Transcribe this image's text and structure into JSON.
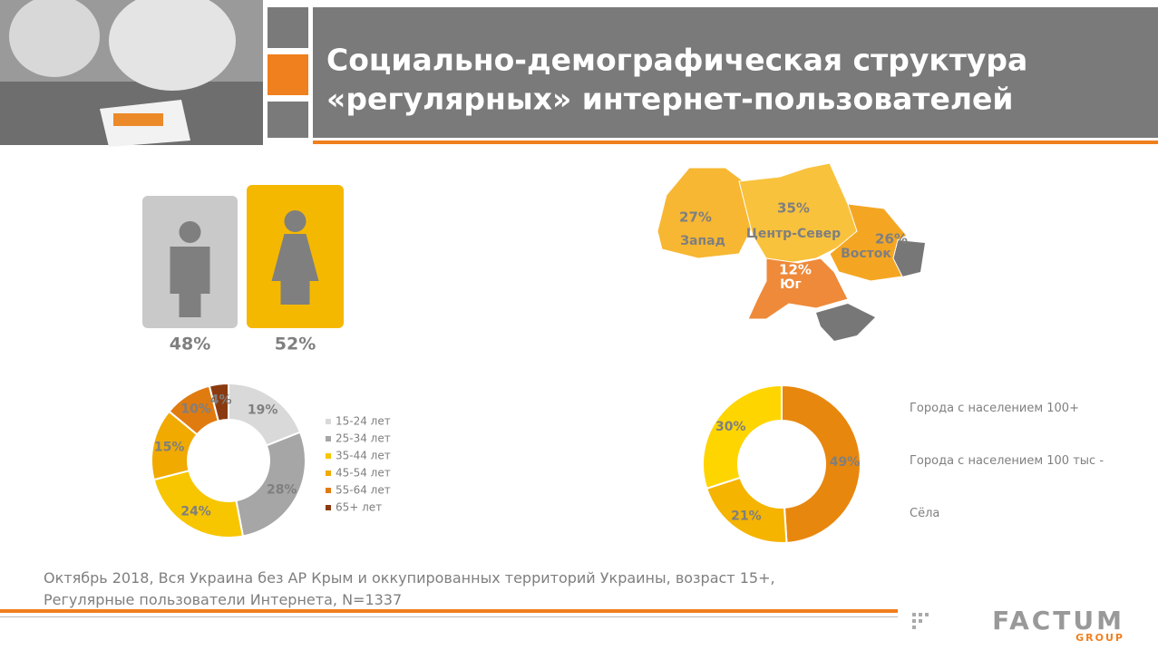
{
  "title": [
    "Социально-демографическая структура",
    "«регулярных» интернет-пользователей"
  ],
  "footnote": [
    "Октябрь 2018, Вся Украина без АР Крым и оккупированных территорий Украины, возраст 15+,",
    "Регулярные пользователи Интернета, N=1337"
  ],
  "logo": {
    "main": "FACTUM",
    "sub": "GROUP"
  },
  "chart_data": [
    {
      "type": "pictogram",
      "categories": [
        null,
        null
      ],
      "values": [
        48,
        52
      ],
      "value_labels": [
        "48%",
        "52%"
      ],
      "colors": [
        "#c9c9c9",
        "#f5b800"
      ]
    },
    {
      "type": "map",
      "categories": [
        "Запад",
        "Центр-Север",
        "Восток",
        "Юг"
      ],
      "values": [
        27,
        35,
        26,
        12
      ],
      "value_labels": [
        "27%",
        "35%",
        "26%",
        "12%"
      ],
      "colors": [
        "#f7b733",
        "#f9c23c",
        "#f4a623",
        "#ee8a3a"
      ]
    },
    {
      "type": "donut",
      "categories": [
        "15-24 лет",
        "25-34 лет",
        "35-44 лет",
        "45-54 лет",
        "55-64 лет",
        "65+ лет"
      ],
      "values": [
        19,
        28,
        24,
        15,
        10,
        4
      ],
      "value_labels": [
        "19%",
        "28%",
        "24%",
        "15%",
        "10%",
        "4%"
      ],
      "colors": [
        "#d9d9d9",
        "#a6a6a6",
        "#f7c600",
        "#f0aa00",
        "#e07b10",
        "#8b3a0f"
      ]
    },
    {
      "type": "donut",
      "categories": [
        "Города с населением 100+",
        "Города с населением 100 тыс -",
        "Сёла"
      ],
      "values": [
        49,
        21,
        30
      ],
      "value_labels": [
        "49%",
        "21%",
        "30%"
      ],
      "colors": [
        "#e8870e",
        "#f5b400",
        "#ffd500"
      ]
    }
  ]
}
